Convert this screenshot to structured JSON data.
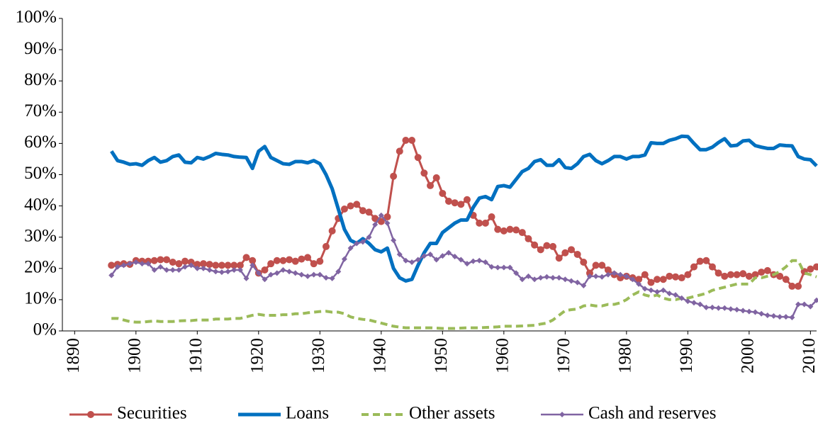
{
  "chart_data": {
    "type": "line",
    "x": [
      1896,
      1897,
      1898,
      1899,
      1900,
      1901,
      1902,
      1903,
      1904,
      1905,
      1906,
      1907,
      1908,
      1909,
      1910,
      1911,
      1912,
      1913,
      1914,
      1915,
      1916,
      1917,
      1918,
      1919,
      1920,
      1921,
      1922,
      1923,
      1924,
      1925,
      1926,
      1927,
      1928,
      1929,
      1930,
      1931,
      1932,
      1933,
      1934,
      1935,
      1936,
      1937,
      1938,
      1939,
      1940,
      1941,
      1942,
      1943,
      1944,
      1945,
      1946,
      1947,
      1948,
      1949,
      1950,
      1951,
      1952,
      1953,
      1954,
      1955,
      1956,
      1957,
      1958,
      1959,
      1960,
      1961,
      1962,
      1963,
      1964,
      1965,
      1966,
      1967,
      1968,
      1969,
      1970,
      1971,
      1972,
      1973,
      1974,
      1975,
      1976,
      1977,
      1978,
      1979,
      1980,
      1981,
      1982,
      1983,
      1984,
      1985,
      1986,
      1987,
      1988,
      1989,
      1990,
      1991,
      1992,
      1993,
      1994,
      1995,
      1996,
      1997,
      1998,
      1999,
      2000,
      2001,
      2002,
      2003,
      2004,
      2005,
      2006,
      2007,
      2008,
      2009,
      2010,
      2011
    ],
    "series": [
      {
        "name": "Securities",
        "color": "#c0504d",
        "marker": "circle",
        "dash": "solid",
        "values": [
          21,
          21.3,
          21.5,
          21.3,
          22.5,
          22.3,
          22.3,
          22.5,
          22.8,
          22.8,
          22,
          21.5,
          22.3,
          22,
          21.3,
          21.5,
          21.3,
          21,
          21,
          21,
          21,
          21,
          23.5,
          22.5,
          18.5,
          19.5,
          21.5,
          22.5,
          22.5,
          22.8,
          22.3,
          23,
          23.5,
          21.5,
          22.3,
          27,
          32,
          36,
          39,
          40,
          40.5,
          38.5,
          38,
          36,
          35,
          36.5,
          49.5,
          57.5,
          61,
          61,
          55.5,
          50.5,
          46.5,
          49,
          44,
          41.5,
          41,
          40.5,
          42,
          37,
          34.5,
          34.5,
          36.5,
          32.5,
          32,
          32.5,
          32.3,
          31.5,
          29.5,
          27.5,
          26,
          27.3,
          27,
          23.3,
          25,
          26,
          24.5,
          22,
          18.5,
          21,
          21,
          19.5,
          18,
          17,
          17.5,
          17,
          16.5,
          18,
          15.5,
          16.5,
          16.5,
          17.5,
          17.3,
          17,
          18,
          20.5,
          22.3,
          22.5,
          20.5,
          18.5,
          17.5,
          18,
          18,
          18.3,
          17.5,
          18,
          18.8,
          19.3,
          18,
          17.5,
          16.5,
          14.3,
          14.3,
          19,
          19.8,
          20.5
        ]
      },
      {
        "name": "Loans",
        "color": "#0070c0",
        "marker": "none",
        "dash": "solid",
        "values": [
          57.5,
          54.5,
          54,
          53.3,
          53.5,
          53,
          54.5,
          55.5,
          54,
          54.5,
          55.8,
          56.3,
          54,
          53.8,
          55.5,
          55,
          55.8,
          56.8,
          56.5,
          56.3,
          55.8,
          55.6,
          55.5,
          52,
          57.5,
          59,
          55.5,
          54.5,
          53.5,
          53.3,
          54.2,
          54.2,
          53.8,
          54.5,
          53.5,
          50,
          45.5,
          39,
          32.5,
          29,
          28,
          29.5,
          28,
          26,
          25.3,
          26.5,
          20,
          17,
          16,
          16.5,
          21,
          25,
          28,
          28,
          31.5,
          33,
          34.5,
          35.5,
          35.5,
          39.5,
          42.5,
          43,
          42,
          46.2,
          46.5,
          46,
          48.5,
          51,
          52,
          54.2,
          54.8,
          53,
          53,
          54.8,
          52.3,
          52,
          53.5,
          55.8,
          56.5,
          54.5,
          53.5,
          54.5,
          55.8,
          55.8,
          55,
          55.8,
          55.8,
          56.3,
          60.2,
          60,
          60,
          61,
          61.5,
          62.3,
          62.2,
          60,
          58,
          58,
          58.8,
          60.3,
          61.5,
          59.2,
          59.4,
          60.8,
          61,
          59.3,
          58.8,
          58.4,
          58.4,
          59.5,
          59.3,
          59.2,
          55.8,
          55,
          54.8,
          52.8
        ]
      },
      {
        "name": "Other assets",
        "color": "#9bbb59",
        "marker": "none",
        "dash": "dashed",
        "values": [
          4,
          4,
          3.5,
          3,
          2.8,
          2.8,
          3,
          3.2,
          3,
          3,
          3,
          3.2,
          3.3,
          3.3,
          3.5,
          3.5,
          3.5,
          3.8,
          3.8,
          3.8,
          4,
          4,
          4.5,
          5,
          5.3,
          5,
          5,
          5,
          5.2,
          5.2,
          5.5,
          5.5,
          5.8,
          6,
          6.2,
          6.3,
          6,
          6,
          5.5,
          4.5,
          4,
          3.7,
          3.5,
          3,
          2.5,
          2,
          1.5,
          1.2,
          1,
          1,
          1,
          1,
          1,
          0.9,
          0.8,
          0.8,
          0.8,
          0.9,
          1,
          1,
          1,
          1.1,
          1.2,
          1.3,
          1.5,
          1.5,
          1.5,
          1.6,
          1.7,
          1.8,
          2.2,
          2.5,
          3.5,
          5,
          6.5,
          6.8,
          7,
          8,
          8.3,
          8,
          8,
          8.5,
          8.5,
          9,
          10,
          11.5,
          12.5,
          11.5,
          11,
          11.5,
          10.5,
          10,
          10,
          10.5,
          10.5,
          11,
          11.5,
          12,
          13,
          13.5,
          14,
          14.5,
          15,
          15,
          15,
          17,
          17,
          17.5,
          18,
          19,
          20.5,
          22.5,
          22.5,
          18.5,
          18,
          17.3
        ]
      },
      {
        "name": "Cash and reserves",
        "color": "#8064a2",
        "marker": "diamond",
        "dash": "solid",
        "values": [
          17.8,
          20.5,
          21,
          21.5,
          22,
          21.5,
          21.5,
          19.5,
          20.5,
          19.5,
          19.5,
          19.5,
          20.5,
          21,
          20,
          20,
          19.5,
          19,
          18.8,
          19,
          19.5,
          19.5,
          16.8,
          21,
          18.5,
          16.5,
          18,
          18.5,
          19.5,
          19,
          18.5,
          18,
          17.5,
          18,
          18,
          17,
          16.8,
          19,
          23,
          26.5,
          28,
          28.5,
          30,
          34,
          37,
          34.5,
          29,
          24.5,
          22.5,
          22,
          22.8,
          24,
          24.5,
          22.8,
          24,
          25,
          23.8,
          22.8,
          21.5,
          22.3,
          22.5,
          22,
          20.5,
          20.3,
          20.3,
          20.3,
          18.5,
          16.5,
          17.5,
          16.5,
          17,
          17.3,
          17,
          17,
          16.5,
          16,
          15.5,
          14.5,
          17.5,
          17.5,
          17.3,
          18,
          18.5,
          18,
          17.5,
          16.5,
          15,
          13.5,
          13,
          12.5,
          13,
          12,
          11.5,
          10.5,
          9.5,
          9,
          8.5,
          7.5,
          7.5,
          7.3,
          7.3,
          7,
          6.8,
          6.5,
          6.2,
          6,
          5.5,
          5,
          4.8,
          4.5,
          4.5,
          4.3,
          8.5,
          8.5,
          7.8,
          9.8
        ]
      }
    ],
    "xlim": [
      1888,
      2011
    ],
    "xticks": [
      1890,
      1900,
      1910,
      1920,
      1930,
      1940,
      1950,
      1960,
      1970,
      1980,
      1990,
      2000,
      2010
    ],
    "ylim": [
      0,
      100
    ],
    "yticks": [
      {
        "value": 0,
        "label": "0%"
      },
      {
        "value": 10,
        "label": "10%"
      },
      {
        "value": 20,
        "label": "20%"
      },
      {
        "value": 30,
        "label": "30%"
      },
      {
        "value": 40,
        "label": "40%"
      },
      {
        "value": 50,
        "label": "50%"
      },
      {
        "value": 60,
        "label": "60%"
      },
      {
        "value": 70,
        "label": "70%"
      },
      {
        "value": 80,
        "label": "80%"
      },
      {
        "value": 90,
        "label": "90%"
      },
      {
        "value": 100,
        "label": "100%"
      }
    ],
    "legend": "bottom"
  }
}
